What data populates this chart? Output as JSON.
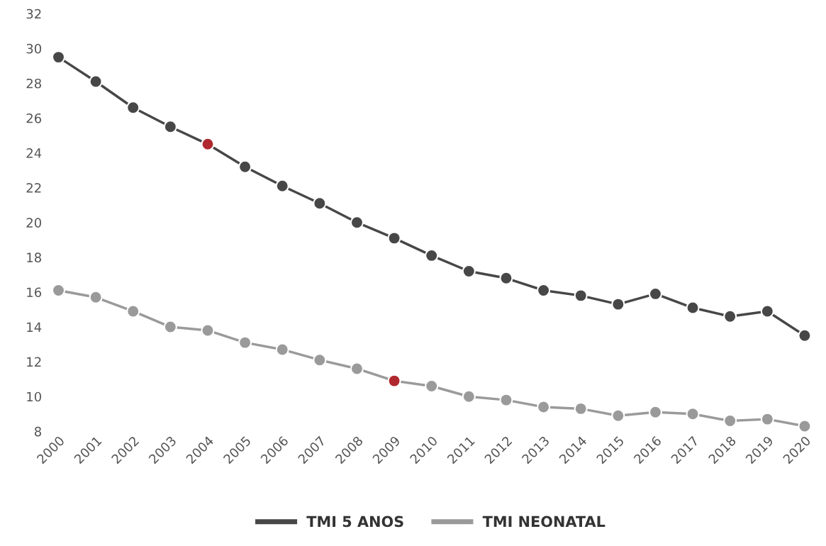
{
  "chart_data": {
    "type": "line",
    "categories": [
      "2000",
      "2001",
      "2002",
      "2003",
      "2004",
      "2005",
      "2006",
      "2007",
      "2008",
      "2009",
      "2010",
      "2011",
      "2012",
      "2013",
      "2014",
      "2015",
      "2016",
      "2017",
      "2018",
      "2019",
      "2020"
    ],
    "series": [
      {
        "name": "TMI 5 ANOS",
        "color": "#474747",
        "colors": [
          "#474747",
          "#474747",
          "#474747",
          "#474747",
          "#b0282e",
          "#474747",
          "#474747",
          "#474747",
          "#474747",
          "#474747",
          "#474747",
          "#474747",
          "#474747",
          "#474747",
          "#474747",
          "#474747",
          "#474747",
          "#474747",
          "#474747",
          "#474747",
          "#474747"
        ],
        "values": [
          29.5,
          28.1,
          26.6,
          25.5,
          24.5,
          23.2,
          22.1,
          21.1,
          20.0,
          19.1,
          18.1,
          17.2,
          16.8,
          16.1,
          15.8,
          15.3,
          15.9,
          15.1,
          14.6,
          14.9,
          13.5
        ]
      },
      {
        "name": "TMI NEONATAL",
        "color": "#9a9a9a",
        "colors": [
          "#9a9a9a",
          "#9a9a9a",
          "#9a9a9a",
          "#9a9a9a",
          "#9a9a9a",
          "#9a9a9a",
          "#9a9a9a",
          "#9a9a9a",
          "#9a9a9a",
          "#b0282e",
          "#9a9a9a",
          "#9a9a9a",
          "#9a9a9a",
          "#9a9a9a",
          "#9a9a9a",
          "#9a9a9a",
          "#9a9a9a",
          "#9a9a9a",
          "#9a9a9a",
          "#9a9a9a",
          "#9a9a9a"
        ],
        "values": [
          16.1,
          15.7,
          14.9,
          14.0,
          13.8,
          13.1,
          12.7,
          12.1,
          11.6,
          10.9,
          10.6,
          10.0,
          9.8,
          9.4,
          9.3,
          8.9,
          9.1,
          9.0,
          8.6,
          8.7,
          8.3
        ]
      }
    ],
    "ylim": [
      8,
      32
    ],
    "yticks": [
      8,
      10,
      12,
      14,
      16,
      18,
      20,
      22,
      24,
      26,
      28,
      30,
      32
    ],
    "grid": false,
    "legend": "bottom",
    "marker": "circle",
    "line_style": "solid"
  }
}
